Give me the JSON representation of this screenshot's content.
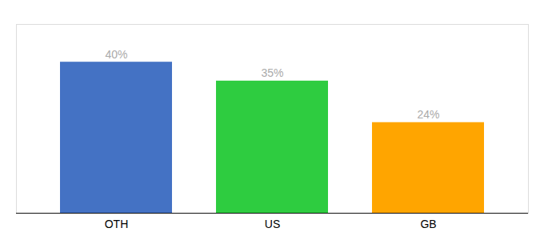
{
  "chart_data": {
    "type": "bar",
    "categories": [
      "OTH",
      "US",
      "GB"
    ],
    "values": [
      40,
      35,
      24
    ],
    "value_labels": [
      "40%",
      "35%",
      "24%"
    ],
    "colors": [
      "#4472C4",
      "#2ECC40",
      "#FFA500"
    ],
    "ylim": [
      0,
      50
    ],
    "grid": false,
    "data_labels": true,
    "tick_labels": "x"
  }
}
